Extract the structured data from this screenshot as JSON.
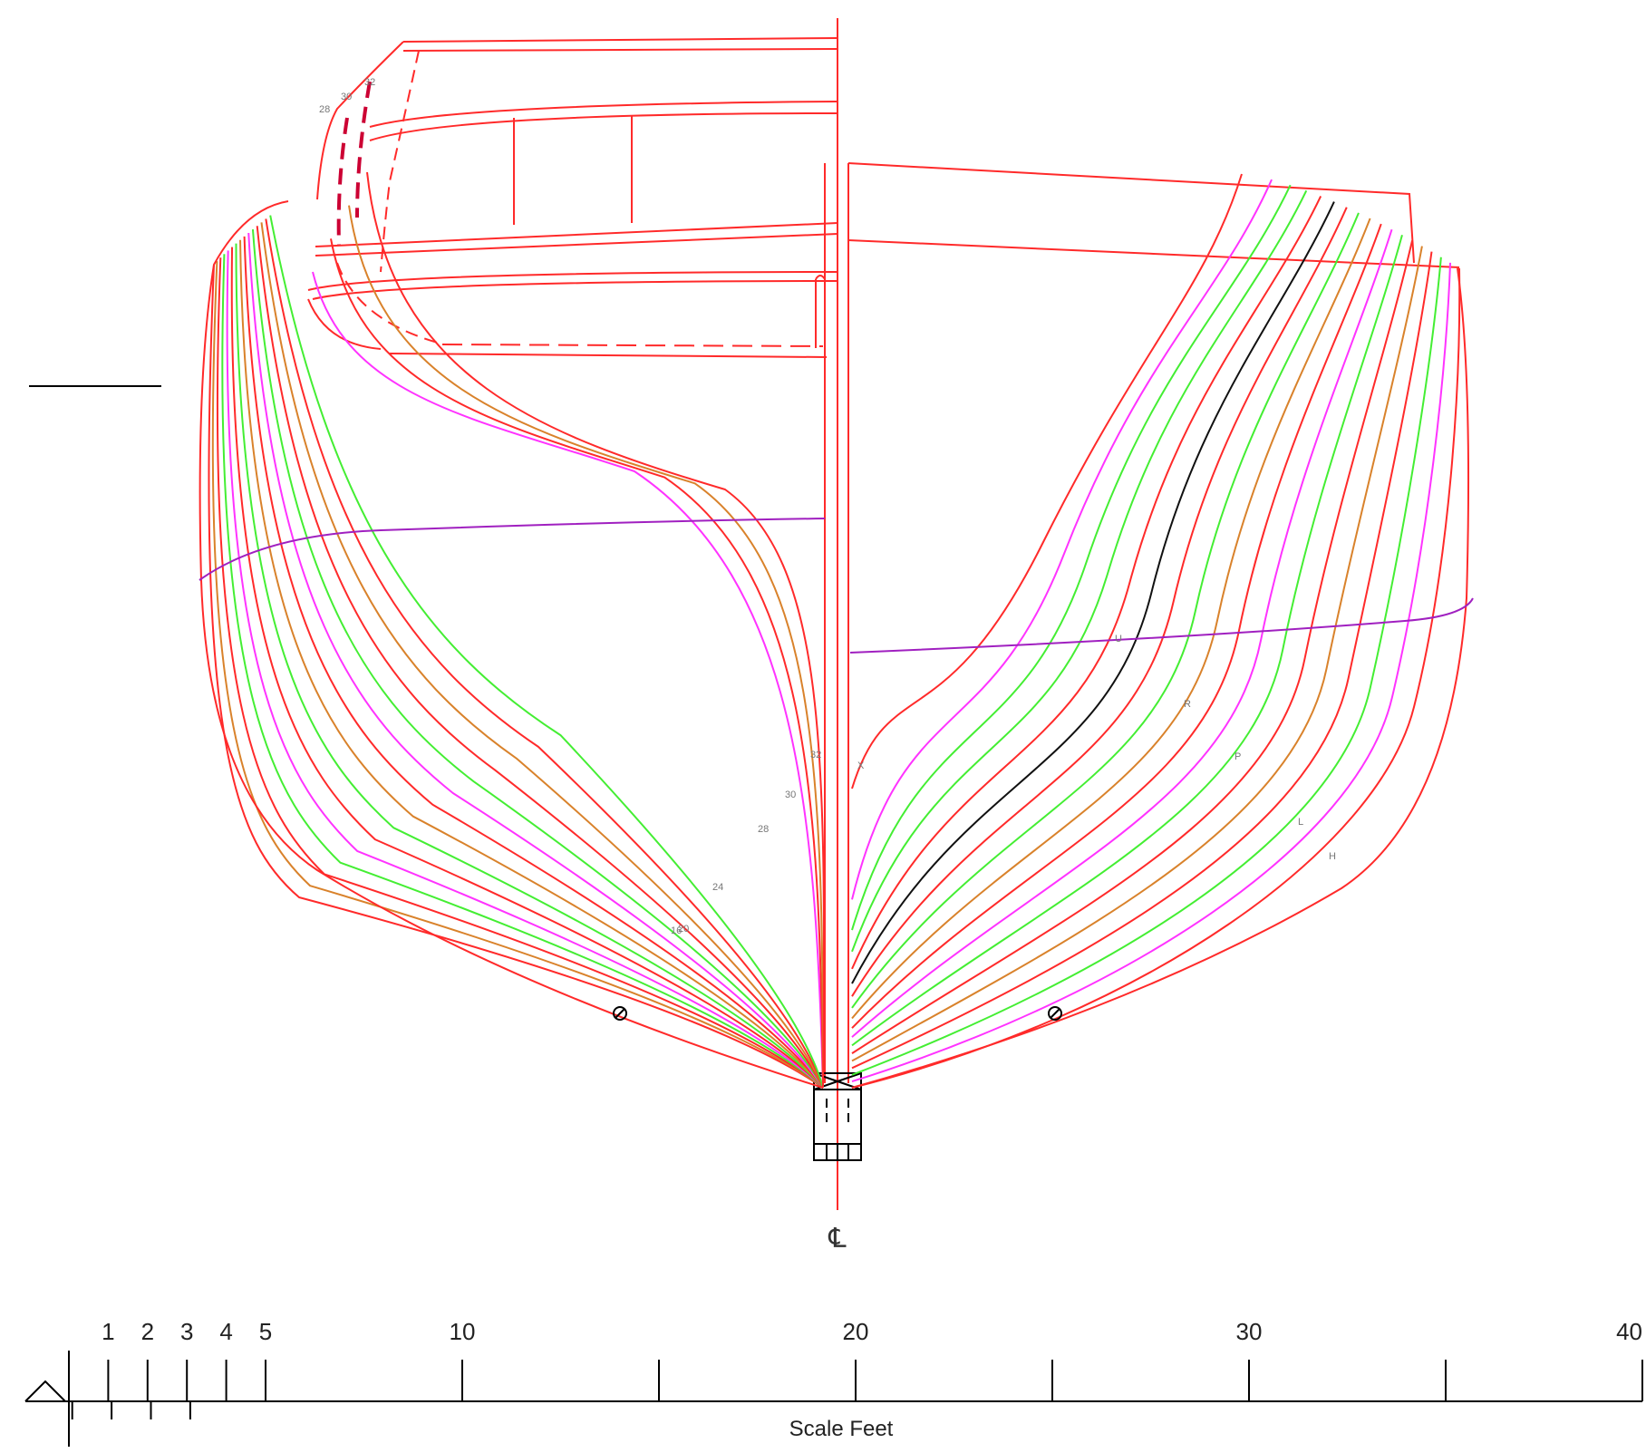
{
  "drawing": {
    "centerline_symbol": "℄",
    "colors": {
      "red": "#ff2a2a",
      "orange": "#d9822b",
      "green": "#44ee33",
      "magenta": "#ff33ff",
      "black": "#111111",
      "purple": "#a020c0",
      "dark_red": "#cc0033"
    },
    "aft_station_labels": [
      "16",
      "20",
      "24",
      "28",
      "30",
      "32"
    ],
    "fwd_station_labels": [
      "X",
      "U",
      "R",
      "P",
      "L",
      "H"
    ],
    "deck_station_labels": [
      "28",
      "30",
      "32"
    ]
  },
  "scale": {
    "title": "Scale Feet",
    "labels": [
      "1",
      "2",
      "3",
      "4",
      "5",
      "10",
      "20",
      "30",
      "40"
    ],
    "values": [
      1,
      2,
      3,
      4,
      5,
      10,
      20,
      30,
      40
    ]
  }
}
